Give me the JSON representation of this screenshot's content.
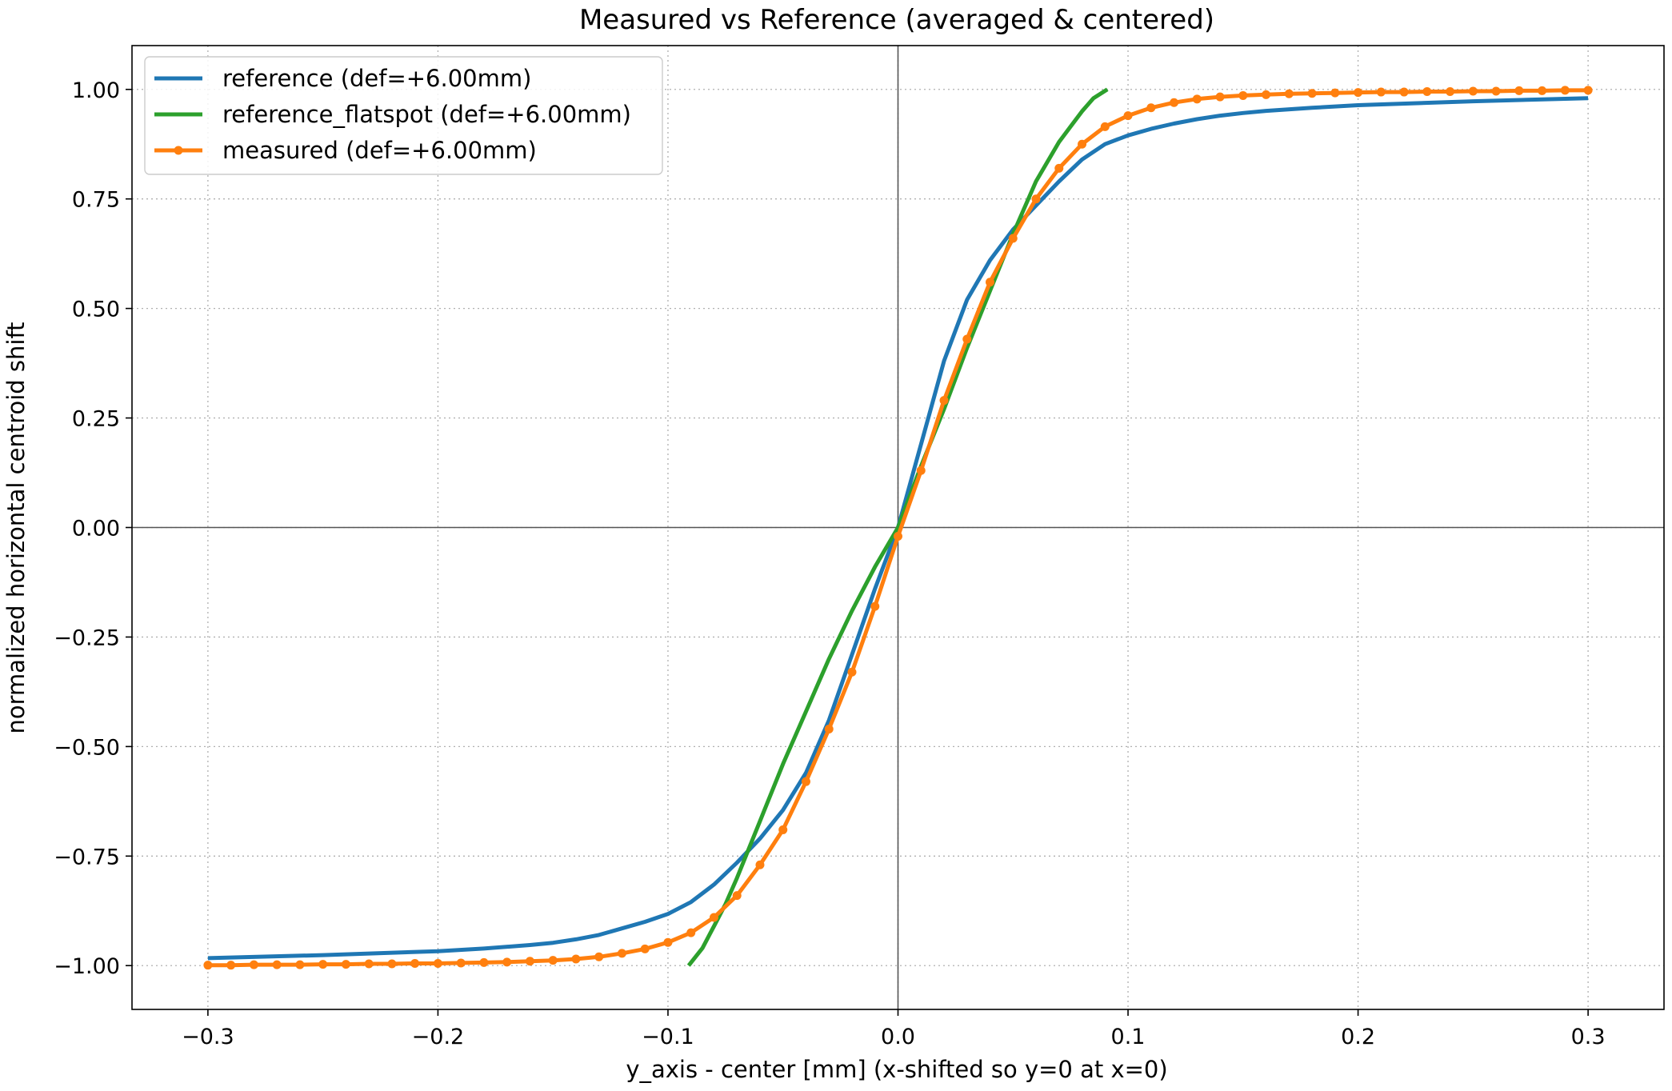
{
  "chart_data": {
    "type": "line",
    "title": "Measured vs Reference (averaged & centered)",
    "xlabel": "y_axis - center [mm] (x-shifted so y=0 at x=0)",
    "ylabel": "normalized horizontal centroid shift",
    "xlim": [
      -0.333,
      0.333
    ],
    "ylim": [
      -1.1,
      1.1
    ],
    "x_ticks": [
      -0.3,
      -0.2,
      -0.1,
      0.0,
      0.1,
      0.2,
      0.3
    ],
    "x_tick_labels": [
      "−0.3",
      "−0.2",
      "−0.1",
      "0.0",
      "0.1",
      "0.2",
      "0.3"
    ],
    "y_ticks": [
      1.0,
      0.75,
      0.5,
      0.25,
      0.0,
      -0.25,
      -0.5,
      -0.75,
      -1.0
    ],
    "y_tick_labels": [
      "1.00",
      "0.75",
      "0.50",
      "0.25",
      "0.00",
      "−0.25",
      "−0.50",
      "−0.75",
      "−1.00"
    ],
    "grid": true,
    "grid_style": "dotted",
    "zero_lines": true,
    "legend_position": "top-left",
    "series": [
      {
        "name": "reference (def=+6.00mm)",
        "color": "#1f77b4",
        "marker": "none",
        "x": [
          -0.3,
          -0.25,
          -0.2,
          -0.18,
          -0.16,
          -0.15,
          -0.14,
          -0.13,
          -0.12,
          -0.11,
          -0.1,
          -0.09,
          -0.08,
          -0.07,
          -0.06,
          -0.05,
          -0.04,
          -0.03,
          -0.02,
          -0.01,
          0.0,
          0.01,
          0.02,
          0.03,
          0.04,
          0.05,
          0.06,
          0.07,
          0.08,
          0.09,
          0.1,
          0.11,
          0.12,
          0.13,
          0.14,
          0.15,
          0.16,
          0.18,
          0.2,
          0.25,
          0.3
        ],
        "y": [
          -0.983,
          -0.976,
          -0.967,
          -0.961,
          -0.953,
          -0.948,
          -0.94,
          -0.93,
          -0.915,
          -0.9,
          -0.882,
          -0.855,
          -0.815,
          -0.765,
          -0.71,
          -0.645,
          -0.56,
          -0.44,
          -0.29,
          -0.14,
          0.0,
          0.19,
          0.38,
          0.52,
          0.61,
          0.68,
          0.735,
          0.79,
          0.84,
          0.875,
          0.895,
          0.91,
          0.922,
          0.932,
          0.94,
          0.946,
          0.951,
          0.958,
          0.964,
          0.973,
          0.98
        ]
      },
      {
        "name": "reference_flatspot (def=+6.00mm)",
        "color": "#2ca02c",
        "marker": "none",
        "x": [
          -0.091,
          -0.085,
          -0.08,
          -0.075,
          -0.07,
          -0.06,
          -0.05,
          -0.04,
          -0.03,
          -0.02,
          -0.01,
          0.0,
          0.01,
          0.02,
          0.03,
          0.04,
          0.05,
          0.06,
          0.07,
          0.075,
          0.08,
          0.085,
          0.091
        ],
        "y": [
          -1.0,
          -0.96,
          -0.91,
          -0.86,
          -0.8,
          -0.67,
          -0.54,
          -0.42,
          -0.3,
          -0.19,
          -0.09,
          0.0,
          0.14,
          0.27,
          0.41,
          0.54,
          0.67,
          0.79,
          0.88,
          0.915,
          0.95,
          0.98,
          1.0
        ]
      },
      {
        "name": "measured (def=+6.00mm)",
        "color": "#ff7f0e",
        "marker": "circle",
        "x": [
          -0.3,
          -0.29,
          -0.28,
          -0.27,
          -0.26,
          -0.25,
          -0.24,
          -0.23,
          -0.22,
          -0.21,
          -0.2,
          -0.19,
          -0.18,
          -0.17,
          -0.16,
          -0.15,
          -0.14,
          -0.13,
          -0.12,
          -0.11,
          -0.1,
          -0.09,
          -0.08,
          -0.07,
          -0.06,
          -0.05,
          -0.04,
          -0.03,
          -0.02,
          -0.01,
          0.0,
          0.01,
          0.02,
          0.03,
          0.04,
          0.05,
          0.06,
          0.07,
          0.08,
          0.09,
          0.1,
          0.11,
          0.12,
          0.13,
          0.14,
          0.15,
          0.16,
          0.17,
          0.18,
          0.19,
          0.2,
          0.21,
          0.22,
          0.23,
          0.24,
          0.25,
          0.26,
          0.27,
          0.28,
          0.29,
          0.3
        ],
        "y": [
          -0.999,
          -0.999,
          -0.998,
          -0.998,
          -0.998,
          -0.997,
          -0.997,
          -0.996,
          -0.996,
          -0.995,
          -0.995,
          -0.994,
          -0.993,
          -0.992,
          -0.99,
          -0.988,
          -0.985,
          -0.98,
          -0.972,
          -0.962,
          -0.947,
          -0.925,
          -0.89,
          -0.84,
          -0.77,
          -0.69,
          -0.58,
          -0.46,
          -0.33,
          -0.18,
          -0.02,
          0.13,
          0.29,
          0.43,
          0.56,
          0.66,
          0.75,
          0.82,
          0.875,
          0.915,
          0.94,
          0.958,
          0.97,
          0.978,
          0.983,
          0.986,
          0.988,
          0.99,
          0.991,
          0.992,
          0.993,
          0.994,
          0.994,
          0.995,
          0.995,
          0.996,
          0.996,
          0.997,
          0.997,
          0.998,
          0.998
        ]
      }
    ]
  }
}
